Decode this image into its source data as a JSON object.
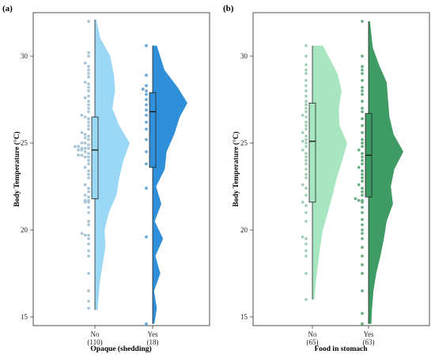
{
  "chart_data": [
    {
      "type": "raincloud",
      "panel_label": "(a)",
      "ylabel": "Body Temperature (°C)",
      "xlabel": "Opaque (shedding)",
      "ylim": [
        14.5,
        32.5
      ],
      "yticks": [
        15,
        20,
        25,
        30
      ],
      "groups": [
        {
          "label": "No",
          "n_label": "(110)",
          "color": "#9ad8f5",
          "point_color": "#a9c6d6",
          "box": {
            "min": 15.4,
            "q1": 21.8,
            "median": 24.6,
            "q3": 26.5,
            "max": 32.1
          },
          "density": [
            [
              15.4,
              0.08
            ],
            [
              16,
              0.1
            ],
            [
              17,
              0.14
            ],
            [
              18,
              0.22
            ],
            [
              19,
              0.3
            ],
            [
              20,
              0.28
            ],
            [
              21,
              0.4
            ],
            [
              22,
              0.62
            ],
            [
              23,
              0.7
            ],
            [
              24,
              0.82
            ],
            [
              25,
              1.0
            ],
            [
              26,
              0.7
            ],
            [
              27,
              0.5
            ],
            [
              28,
              0.58
            ],
            [
              29,
              0.54
            ],
            [
              30,
              0.44
            ],
            [
              31,
              0.16
            ],
            [
              32.1,
              0.04
            ]
          ],
          "points": [
            15.5,
            15.9,
            16.5,
            17.5,
            18.5,
            18.8,
            19.2,
            19.5,
            19.7,
            19.7,
            19.8,
            20.3,
            20.5,
            21.0,
            21.3,
            21.6,
            21.6,
            21.7,
            21.7,
            21.9,
            22.0,
            22.2,
            22.4,
            22.6,
            23.0,
            23.2,
            23.4,
            23.6,
            23.8,
            24.0,
            24.2,
            24.2,
            24.3,
            24.3,
            24.4,
            24.5,
            24.6,
            24.6,
            24.7,
            24.7,
            24.7,
            24.8,
            24.8,
            24.9,
            25.0,
            25.0,
            25.2,
            25.3,
            25.4,
            25.5,
            25.6,
            25.8,
            26.0,
            26.2,
            26.4,
            26.5,
            26.6,
            26.8,
            27.0,
            27.2,
            27.4,
            27.6,
            27.7,
            28.0,
            28.2,
            28.4,
            28.5,
            28.8,
            29.0,
            29.2,
            29.4,
            29.6,
            30.0,
            30.2,
            32.0
          ]
        },
        {
          "label": "Yes",
          "n_label": "(18)",
          "color": "#2f8fd8",
          "point_color": "#6aa8d8",
          "box": {
            "min": 14.6,
            "q1": 23.6,
            "median": 26.8,
            "q3": 27.9,
            "max": 30.6
          },
          "density": [
            [
              14.6,
              0.05
            ],
            [
              15.5,
              0.12
            ],
            [
              16.5,
              0.04
            ],
            [
              17.5,
              0.22
            ],
            [
              18.5,
              0.08
            ],
            [
              19.5,
              0.3
            ],
            [
              20.5,
              0.06
            ],
            [
              21.5,
              0.25
            ],
            [
              22.5,
              0.1
            ],
            [
              23.5,
              0.35
            ],
            [
              24.5,
              0.4
            ],
            [
              25.5,
              0.62
            ],
            [
              26.5,
              0.78
            ],
            [
              27.3,
              1.0
            ],
            [
              28.2,
              0.72
            ],
            [
              29.2,
              0.34
            ],
            [
              30.6,
              0.12
            ]
          ],
          "points": [
            14.6,
            19.6,
            22.4,
            23.8,
            24.5,
            25.2,
            25.8,
            26.2,
            26.6,
            26.9,
            27.2,
            27.5,
            27.8,
            28.0,
            28.1,
            28.3,
            28.9,
            30.6
          ]
        }
      ]
    },
    {
      "type": "raincloud",
      "panel_label": "(b)",
      "ylabel": "Body Temperature (°C)",
      "xlabel": "Food in stomach",
      "ylim": [
        14.5,
        32.5
      ],
      "yticks": [
        15,
        20,
        25,
        30
      ],
      "groups": [
        {
          "label": "No",
          "n_label": "(65)",
          "color": "#a8e6c2",
          "point_color": "#a4cfb6",
          "box": {
            "min": 16.0,
            "q1": 21.6,
            "median": 25.1,
            "q3": 27.3,
            "max": 30.6
          },
          "density": [
            [
              16.0,
              0.06
            ],
            [
              17,
              0.1
            ],
            [
              18,
              0.16
            ],
            [
              19,
              0.22
            ],
            [
              20,
              0.3
            ],
            [
              21,
              0.44
            ],
            [
              22,
              0.58
            ],
            [
              23,
              0.7
            ],
            [
              24,
              0.86
            ],
            [
              25,
              1.0
            ],
            [
              26,
              0.78
            ],
            [
              27,
              0.76
            ],
            [
              28,
              0.84
            ],
            [
              29,
              0.72
            ],
            [
              30,
              0.46
            ],
            [
              30.6,
              0.3
            ]
          ],
          "points": [
            16.0,
            17.5,
            18.5,
            18.8,
            19.2,
            19.5,
            19.6,
            20.5,
            21.0,
            21.4,
            21.6,
            22.0,
            22.4,
            22.6,
            23.0,
            23.2,
            23.5,
            23.8,
            24.0,
            24.2,
            24.4,
            24.6,
            24.8,
            25.0,
            25.1,
            25.2,
            25.4,
            25.6,
            25.8,
            26.0,
            26.2,
            26.5,
            26.6,
            26.8,
            27.0,
            27.2,
            27.4,
            27.7,
            28.0,
            28.3,
            28.6,
            29.0,
            29.2,
            29.5,
            30.0,
            30.6
          ]
        },
        {
          "label": "Yes",
          "n_label": "(63)",
          "color": "#3d9b63",
          "point_color": "#6cae86",
          "box": {
            "min": 14.6,
            "q1": 21.9,
            "median": 24.3,
            "q3": 26.7,
            "max": 32.0
          },
          "density": [
            [
              14.6,
              0.08
            ],
            [
              15.5,
              0.1
            ],
            [
              16.5,
              0.14
            ],
            [
              17.5,
              0.22
            ],
            [
              18.5,
              0.34
            ],
            [
              19.5,
              0.44
            ],
            [
              20.5,
              0.52
            ],
            [
              21.5,
              0.7
            ],
            [
              22.5,
              0.64
            ],
            [
              23.5,
              0.74
            ],
            [
              24.5,
              1.0
            ],
            [
              25.5,
              0.72
            ],
            [
              26.5,
              0.6
            ],
            [
              27.5,
              0.56
            ],
            [
              28.5,
              0.52
            ],
            [
              29.5,
              0.3
            ],
            [
              30.5,
              0.12
            ],
            [
              32.0,
              0.04
            ]
          ],
          "points": [
            14.6,
            15.2,
            16.5,
            17.5,
            18.0,
            18.5,
            19.0,
            19.5,
            19.8,
            20.0,
            20.3,
            20.6,
            21.0,
            21.3,
            21.6,
            21.7,
            21.7,
            21.8,
            22.0,
            22.2,
            22.4,
            22.6,
            22.8,
            23.0,
            23.2,
            23.4,
            23.6,
            23.8,
            24.0,
            24.2,
            24.4,
            24.6,
            24.8,
            25.0,
            25.2,
            25.6,
            26.0,
            26.4,
            26.8,
            27.0,
            27.4,
            27.8,
            28.0,
            28.2,
            28.6,
            29.0,
            29.2,
            29.4,
            30.0,
            32.0
          ]
        }
      ]
    }
  ]
}
